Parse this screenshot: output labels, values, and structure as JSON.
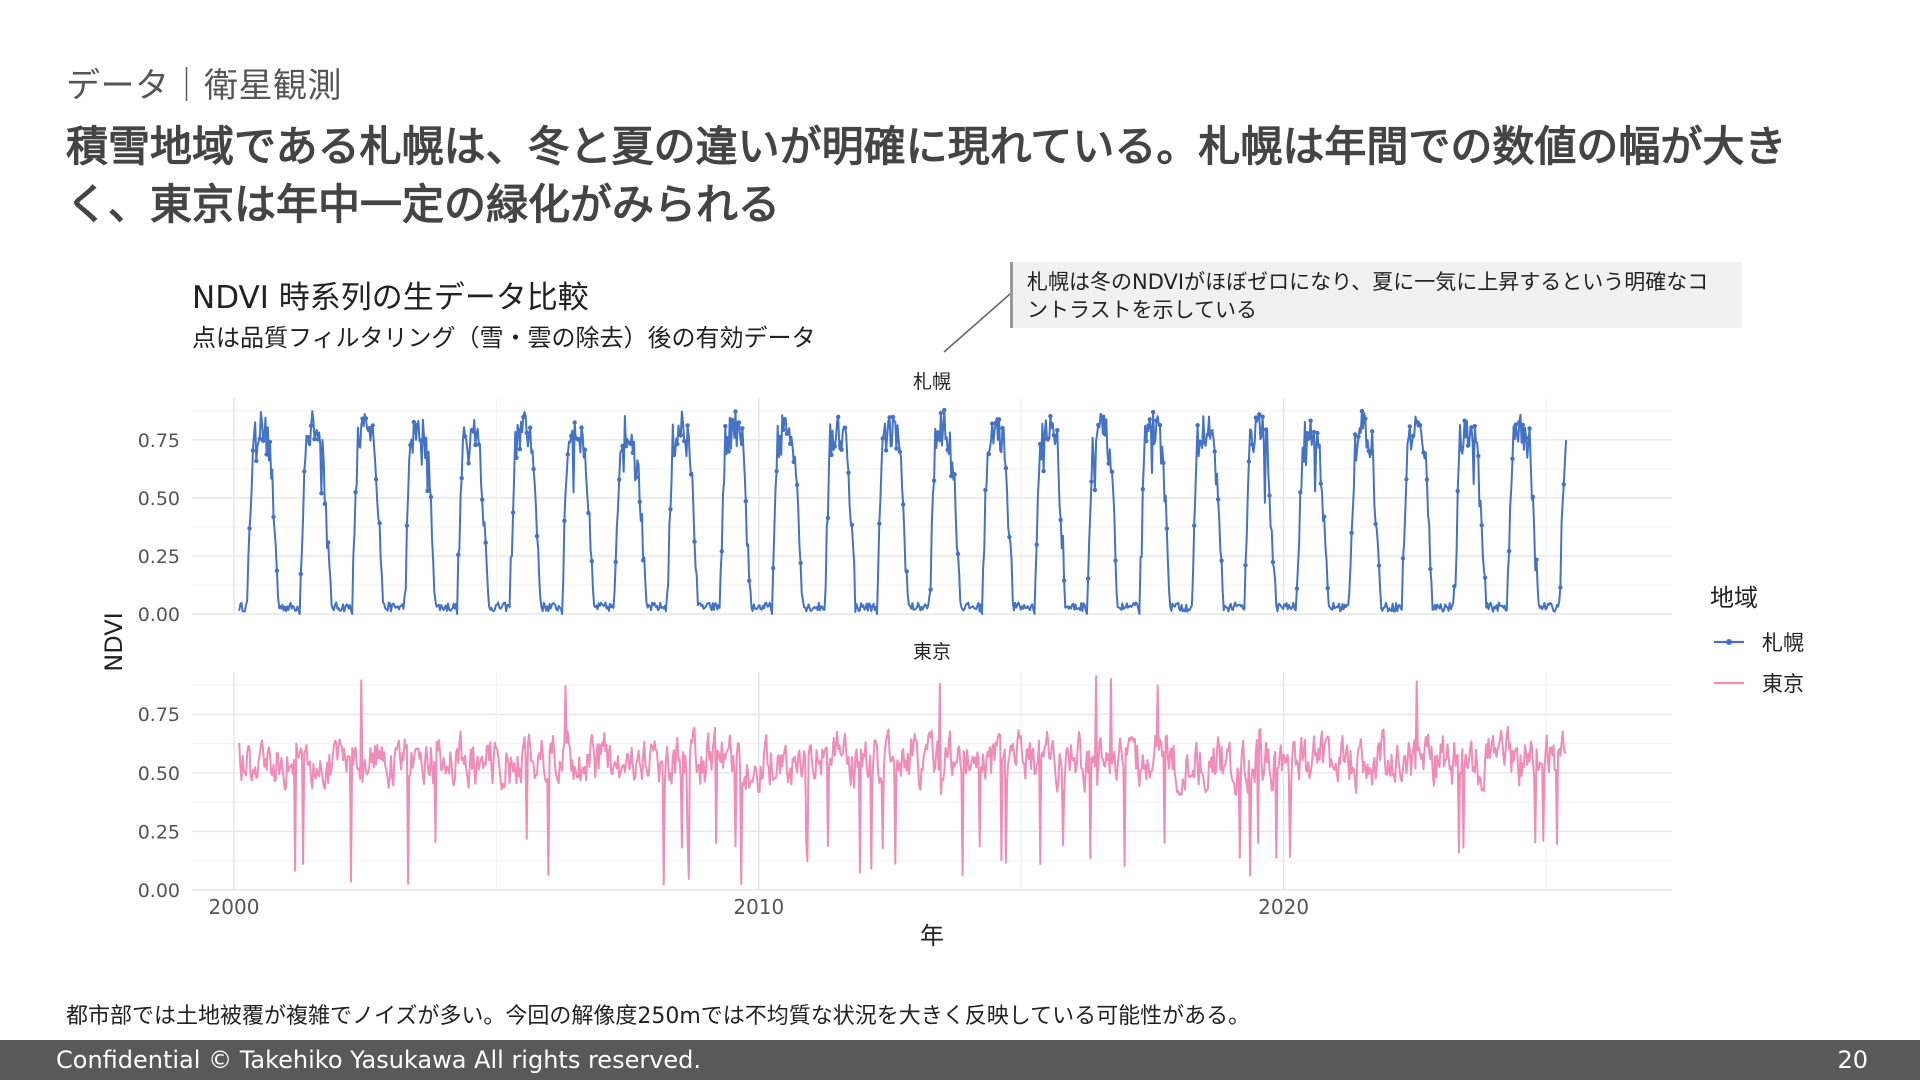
{
  "slide": {
    "section_label": "データ｜衛星観測",
    "headline": "積雪地域である札幌は、冬と夏の違いが明確に現れている。札幌は年間での数値の幅が大きく、東京は年中一定の緑化がみられる",
    "callout": "札幌は冬のNDVIがほぼゼロになり、夏に一気に上昇するという明確なコントラストを示している",
    "note": "都市部では土地被覆が複雑でノイズが多い。今回の解像度250mでは不均質な状況を大きく反映している可能性がある。",
    "footer_left": "Confidential  © Takehiko Yasukawa  All rights reserved.",
    "page_number": "20"
  },
  "chart_data": {
    "type": "line",
    "title": "NDVI 時系列の生データ比較",
    "subtitle": "点は品質フィルタリング（雪・雲の除去）後の有効データ",
    "xlabel": "年",
    "ylabel": "NDVI",
    "x_ticks": [
      2000,
      2010,
      2020
    ],
    "xlim": [
      1999.2,
      2027.4
    ],
    "y_ticks": [
      "0.00",
      "0.25",
      "0.50",
      "0.75"
    ],
    "ylim": [
      0,
      0.93
    ],
    "grid": true,
    "legend_title": "地域",
    "legend_position": "right",
    "facets": [
      {
        "label": "札幌",
        "series_name": "札幌",
        "color": "#4472c4",
        "style": "line+points",
        "x_range": [
          2000.1,
          2025.4
        ],
        "baseline": 0.03,
        "peak_typical": 0.8,
        "peak_max": 0.92,
        "season_start": 2000.25,
        "period_years": 1
      },
      {
        "label": "東京",
        "series_name": "東京",
        "color": "#f08cb8",
        "style": "line",
        "x_range": [
          2000.1,
          2025.4
        ],
        "typical_range": [
          0.35,
          0.75
        ],
        "max": 0.92,
        "min": 0.02
      }
    ]
  }
}
